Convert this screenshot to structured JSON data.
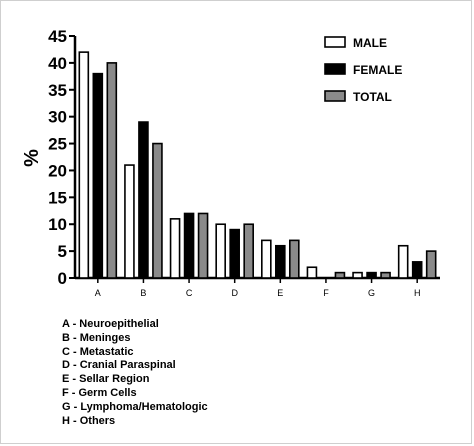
{
  "chart_data": {
    "type": "bar",
    "categories": [
      "A",
      "B",
      "C",
      "D",
      "E",
      "F",
      "G",
      "H"
    ],
    "series": [
      {
        "name": "MALE",
        "values": [
          42,
          21,
          11,
          10,
          7,
          2,
          1,
          6
        ],
        "color": "#ffffff"
      },
      {
        "name": "FEMALE",
        "values": [
          38,
          29,
          12,
          9,
          6,
          0,
          1,
          3
        ],
        "color": "#000000"
      },
      {
        "name": "TOTAL",
        "values": [
          40,
          25,
          12,
          10,
          7,
          1,
          1,
          5
        ],
        "color": "#8a8a8a"
      }
    ],
    "ylabel": "%",
    "ylim": [
      0,
      45
    ],
    "yticks": [
      0,
      5,
      10,
      15,
      20,
      25,
      30,
      35,
      40,
      45
    ],
    "legend_position": "top-right",
    "grid": false
  },
  "category_notes": [
    "A - Neuroepithelial",
    "B - Meninges",
    "C - Metastatic",
    "D - Cranial Paraspinal",
    "E - Sellar Region",
    "F - Germ Cells",
    "G - Lymphoma/Hematologic",
    "H - Others"
  ]
}
